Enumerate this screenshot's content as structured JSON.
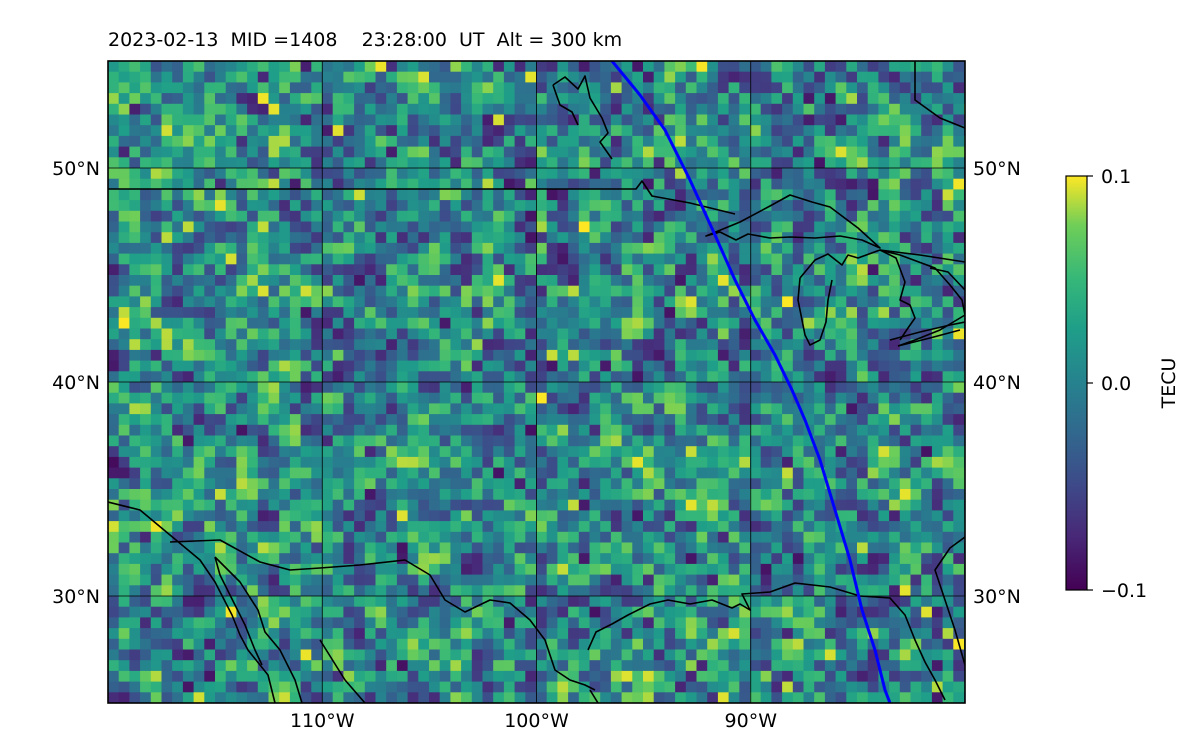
{
  "title": "2023-02-13  MID =1408    23:28:00  UT  Alt = 300 km",
  "map": {
    "lon_range": [
      -120,
      -80
    ],
    "lat_range": [
      25,
      55
    ],
    "lon_ticks": [
      {
        "value": -110,
        "label": "110°W"
      },
      {
        "value": -100,
        "label": "100°W"
      },
      {
        "value": -90,
        "label": "90°W"
      }
    ],
    "lat_ticks": [
      {
        "value": 30,
        "label": "30°N"
      },
      {
        "value": 40,
        "label": "40°N"
      },
      {
        "value": 50,
        "label": "50°N"
      }
    ],
    "colormap": "viridis",
    "terminator_color": "#0000ff"
  },
  "colorbar": {
    "label": "TECU",
    "min": -0.1,
    "max": 0.1,
    "ticks": [
      {
        "value": 0.1,
        "label": "0.1"
      },
      {
        "value": 0.0,
        "label": "0.0"
      },
      {
        "value": -0.1,
        "label": "−0.1"
      }
    ]
  }
}
